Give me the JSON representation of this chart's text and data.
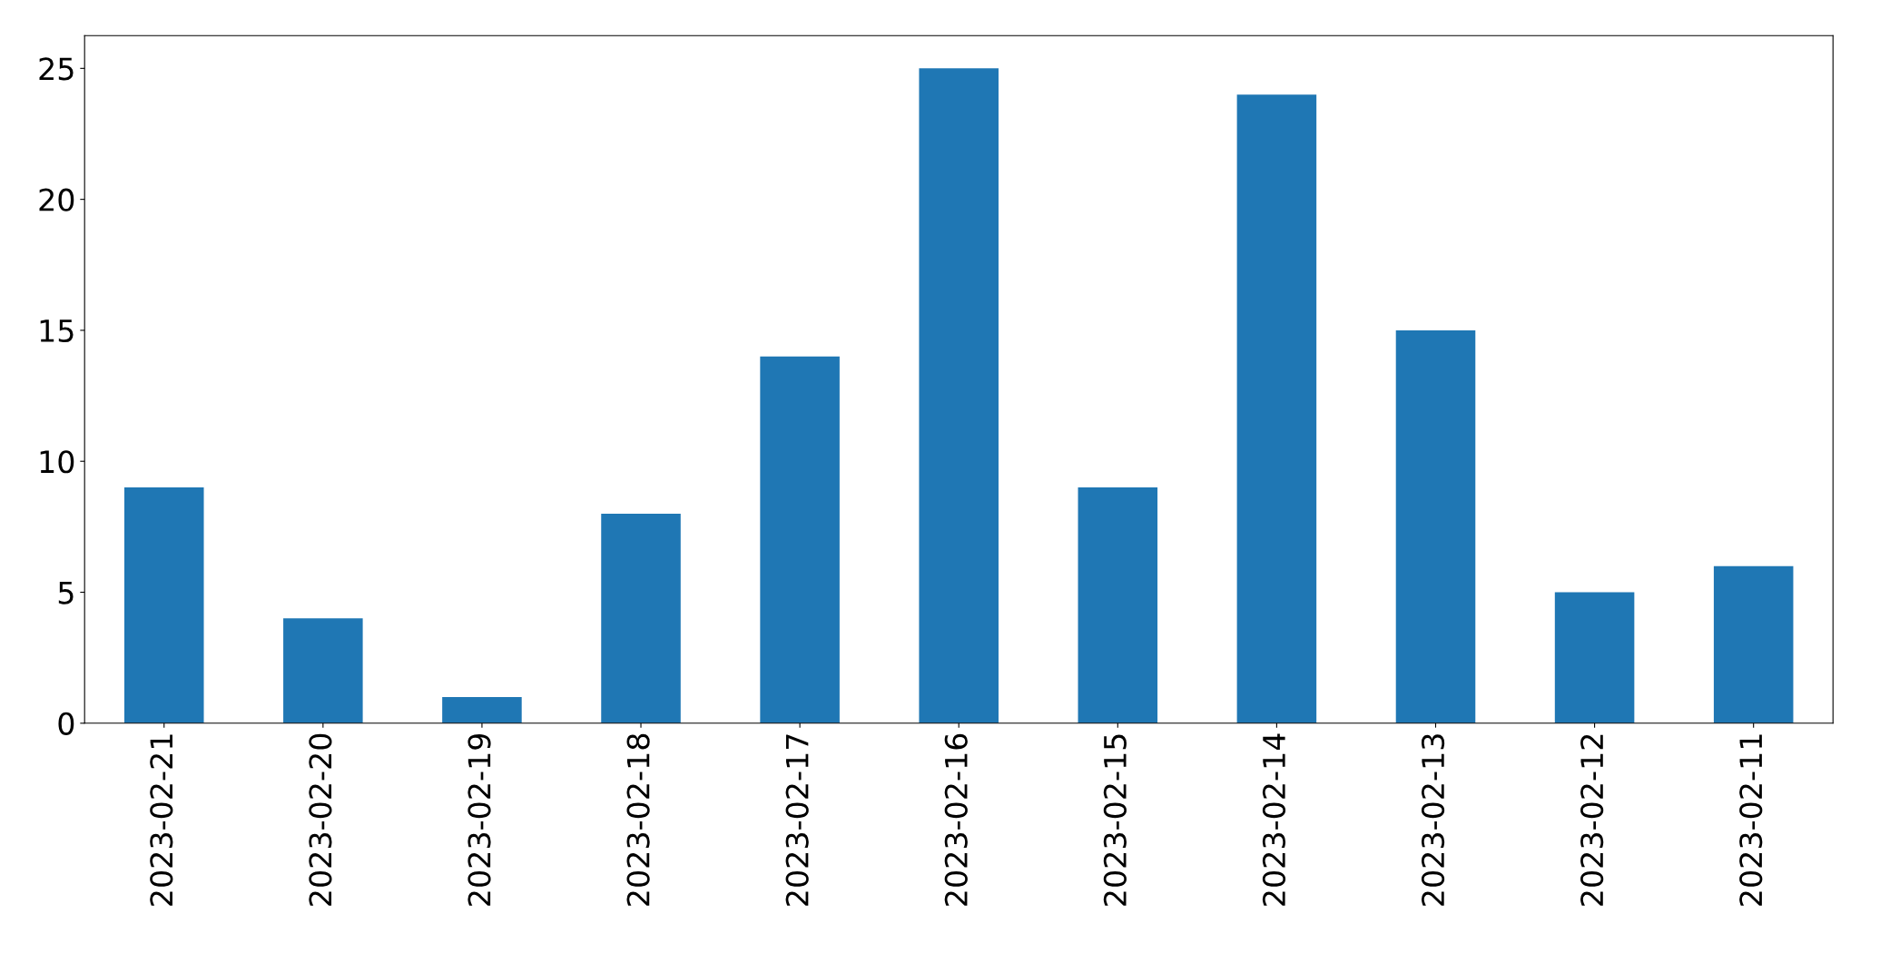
{
  "chart_data": {
    "type": "bar",
    "categories": [
      "2023-02-21",
      "2023-02-20",
      "2023-02-19",
      "2023-02-18",
      "2023-02-17",
      "2023-02-16",
      "2023-02-15",
      "2023-02-14",
      "2023-02-13",
      "2023-02-12",
      "2023-02-11"
    ],
    "values": [
      9,
      4,
      1,
      8,
      14,
      25,
      9,
      24,
      15,
      5,
      6
    ],
    "color": "#1f77b4",
    "ylim": [
      0,
      26.25
    ],
    "yticks": [
      0,
      5,
      10,
      15,
      20,
      25
    ],
    "grid": false,
    "legend": false
  }
}
